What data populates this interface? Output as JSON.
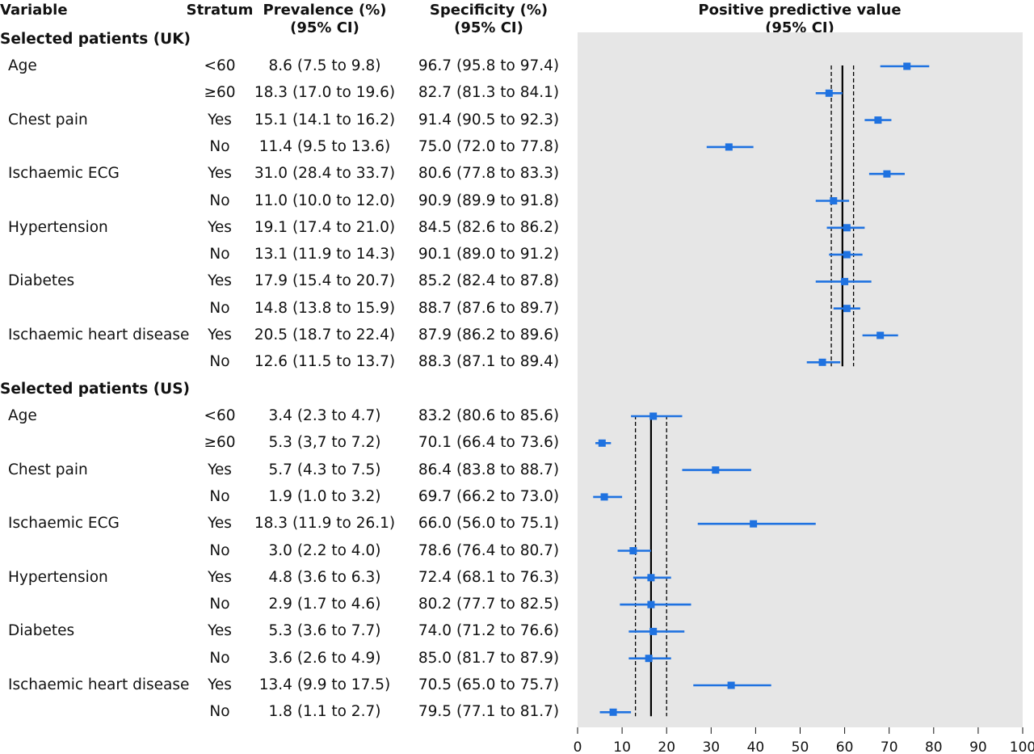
{
  "headers": {
    "variable": "Variable",
    "stratum": "Stratum",
    "prevalence_line1": "Prevalence (%)",
    "prevalence_line2": "(95% CI)",
    "specificity_line1": "Specificity (%)",
    "specificity_line2": "(95% CI)",
    "ppv_line1": "Positive predictive value",
    "ppv_line2": "(95% CI)"
  },
  "colors": {
    "marker": "#1f72e0",
    "plot_background": "#e6e6e6",
    "reference_line": "#000000"
  },
  "chart_data": {
    "type": "forest",
    "xlim": [
      0,
      100
    ],
    "xticks": [
      0,
      10,
      20,
      30,
      40,
      50,
      60,
      70,
      80,
      90,
      100
    ],
    "groups": [
      {
        "title": "Selected patients (UK)",
        "pooled": 59.5,
        "pooled_ci": [
          57.0,
          62.0
        ],
        "rows": [
          {
            "variable": "Age",
            "stratum": "<60",
            "prevalence": "8.6 (7.5 to 9.8)",
            "specificity": "96.7 (95.8 to 97.4)",
            "ppv": 74.0,
            "lo": 68.0,
            "hi": 79.0
          },
          {
            "variable": "",
            "stratum": "≥60",
            "prevalence": "18.3 (17.0 to 19.6)",
            "specificity": "82.7 (81.3 to 84.1)",
            "ppv": 56.5,
            "lo": 53.5,
            "hi": 59.5
          },
          {
            "variable": "Chest pain",
            "stratum": "Yes",
            "prevalence": "15.1 (14.1 to 16.2)",
            "specificity": "91.4 (90.5 to 92.3)",
            "ppv": 67.5,
            "lo": 64.5,
            "hi": 70.5
          },
          {
            "variable": "",
            "stratum": "No",
            "prevalence": "11.4 (9.5 to 13.6)",
            "specificity": "75.0 (72.0 to 77.8)",
            "ppv": 34.0,
            "lo": 29.0,
            "hi": 39.5
          },
          {
            "variable": "Ischaemic ECG",
            "stratum": "Yes",
            "prevalence": "31.0 (28.4 to 33.7)",
            "specificity": "80.6 (77.8 to 83.3)",
            "ppv": 69.5,
            "lo": 65.5,
            "hi": 73.5
          },
          {
            "variable": "",
            "stratum": "No",
            "prevalence": "11.0 (10.0 to 12.0)",
            "specificity": "90.9 (89.9 to 91.8)",
            "ppv": 57.5,
            "lo": 53.5,
            "hi": 61.0
          },
          {
            "variable": "Hypertension",
            "stratum": "Yes",
            "prevalence": "19.1 (17.4 to 21.0)",
            "specificity": "84.5 (82.6 to 86.2)",
            "ppv": 60.5,
            "lo": 56.0,
            "hi": 64.5
          },
          {
            "variable": "",
            "stratum": "No",
            "prevalence": "13.1 (11.9 to 14.3)",
            "specificity": "90.1 (89.0 to 91.2)",
            "ppv": 60.5,
            "lo": 56.5,
            "hi": 64.0
          },
          {
            "variable": "Diabetes",
            "stratum": "Yes",
            "prevalence": "17.9 (15.4 to 20.7)",
            "specificity": "85.2 (82.4 to 87.8)",
            "ppv": 60.0,
            "lo": 53.5,
            "hi": 66.0
          },
          {
            "variable": "",
            "stratum": "No",
            "prevalence": "14.8 (13.8 to 15.9)",
            "specificity": "88.7 (87.6 to 89.7)",
            "ppv": 60.5,
            "lo": 57.5,
            "hi": 63.5
          },
          {
            "variable": "Ischaemic heart disease",
            "stratum": "Yes",
            "prevalence": "20.5 (18.7 to 22.4)",
            "specificity": "87.9 (86.2 to 89.6)",
            "ppv": 68.0,
            "lo": 64.0,
            "hi": 72.0
          },
          {
            "variable": "",
            "stratum": "No",
            "prevalence": "12.6 (11.5 to 13.7)",
            "specificity": "88.3 (87.1 to 89.4)",
            "ppv": 55.0,
            "lo": 51.5,
            "hi": 59.0
          }
        ]
      },
      {
        "title": "Selected patients (US)",
        "pooled": 16.5,
        "pooled_ci": [
          13.0,
          20.0
        ],
        "rows": [
          {
            "variable": "Age",
            "stratum": "<60",
            "prevalence": "3.4 (2.3 to 4.7)",
            "specificity": "83.2 (80.6 to 85.6)",
            "ppv": 17.0,
            "lo": 12.0,
            "hi": 23.5
          },
          {
            "variable": "",
            "stratum": "≥60",
            "prevalence": "5.3 (3,7 to 7.2)",
            "specificity": "70.1 (66.4 to 73.6)",
            "ppv": 5.5,
            "lo": 4.0,
            "hi": 7.5
          },
          {
            "variable": "Chest pain",
            "stratum": "Yes",
            "prevalence": "5.7 (4.3 to 7.5)",
            "specificity": "86.4 (83.8 to 88.7)",
            "ppv": 31.0,
            "lo": 23.5,
            "hi": 39.0
          },
          {
            "variable": "",
            "stratum": "No",
            "prevalence": "1.9 (1.0 to 3.2)",
            "specificity": "69.7 (66.2 to 73.0)",
            "ppv": 6.0,
            "lo": 3.5,
            "hi": 10.0
          },
          {
            "variable": "Ischaemic ECG",
            "stratum": "Yes",
            "prevalence": "18.3 (11.9 to 26.1)",
            "specificity": "66.0 (56.0 to 75.1)",
            "ppv": 39.5,
            "lo": 27.0,
            "hi": 53.5
          },
          {
            "variable": "",
            "stratum": "No",
            "prevalence": "3.0 (2.2 to 4.0)",
            "specificity": "78.6 (76.4 to 80.7)",
            "ppv": 12.5,
            "lo": 9.0,
            "hi": 16.5
          },
          {
            "variable": "Hypertension",
            "stratum": "Yes",
            "prevalence": "4.8 (3.6 to 6.3)",
            "specificity": "72.4 (68.1 to 76.3)",
            "ppv": 16.5,
            "lo": 12.5,
            "hi": 21.0
          },
          {
            "variable": "",
            "stratum": "No",
            "prevalence": "2.9 (1.7 to 4.6)",
            "specificity": "80.2 (77.7 to 82.5)",
            "ppv": 16.5,
            "lo": 9.5,
            "hi": 25.5
          },
          {
            "variable": "Diabetes",
            "stratum": "Yes",
            "prevalence": "5.3 (3.6 to 7.7)",
            "specificity": "74.0 (71.2 to 76.6)",
            "ppv": 17.0,
            "lo": 11.5,
            "hi": 24.0
          },
          {
            "variable": "",
            "stratum": "No",
            "prevalence": "3.6 (2.6 to 4.9)",
            "specificity": "85.0 (81.7 to 87.9)",
            "ppv": 16.0,
            "lo": 11.5,
            "hi": 21.0
          },
          {
            "variable": "Ischaemic heart disease",
            "stratum": "Yes",
            "prevalence": "13.4 (9.9 to 17.5)",
            "specificity": "70.5 (65.0 to 75.7)",
            "ppv": 34.5,
            "lo": 26.0,
            "hi": 43.5
          },
          {
            "variable": "",
            "stratum": "No",
            "prevalence": "1.8 (1.1 to 2.7)",
            "specificity": "79.5 (77.1 to 81.7)",
            "ppv": 8.0,
            "lo": 5.0,
            "hi": 12.0
          }
        ]
      }
    ]
  }
}
